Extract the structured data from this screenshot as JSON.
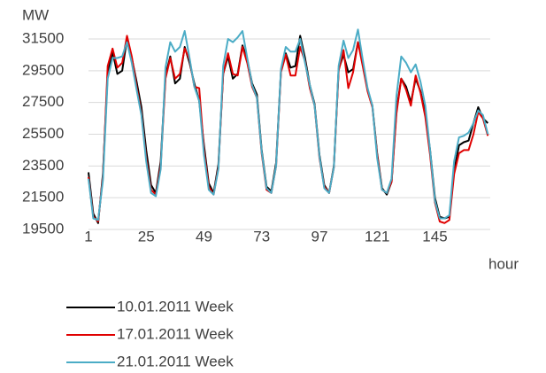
{
  "chart_data": {
    "type": "line",
    "x_label": "hour",
    "y_label": "MW",
    "x": [
      1,
      3,
      5,
      7,
      9,
      11,
      13,
      15,
      17,
      19,
      21,
      23,
      25,
      27,
      29,
      31,
      33,
      35,
      37,
      39,
      41,
      43,
      45,
      47,
      49,
      51,
      53,
      55,
      57,
      59,
      61,
      63,
      65,
      67,
      69,
      71,
      73,
      75,
      77,
      79,
      81,
      83,
      85,
      87,
      89,
      91,
      93,
      95,
      97,
      99,
      101,
      103,
      105,
      107,
      109,
      111,
      113,
      115,
      117,
      119,
      121,
      123,
      125,
      127,
      129,
      131,
      133,
      135,
      137,
      139,
      141,
      143,
      145,
      147,
      149,
      151,
      153,
      155,
      157,
      159,
      161,
      163,
      165,
      167
    ],
    "series": [
      {
        "name": "10.01.2011 Week",
        "color": "#000000",
        "values": [
          23100,
          20500,
          19900,
          23000,
          29300,
          30700,
          29300,
          29500,
          31500,
          30300,
          28800,
          27200,
          24500,
          22300,
          21800,
          23800,
          29200,
          30400,
          28700,
          29000,
          31000,
          30000,
          28700,
          27600,
          24800,
          22400,
          21800,
          23600,
          29300,
          30400,
          29000,
          29300,
          31100,
          30200,
          28700,
          28000,
          24500,
          22200,
          21900,
          23700,
          29500,
          30600,
          29700,
          29800,
          31700,
          30300,
          28600,
          27400,
          24200,
          22300,
          21800,
          23500,
          29600,
          30500,
          29400,
          29600,
          31300,
          30000,
          28300,
          27300,
          24300,
          22100,
          21700,
          22500,
          27000,
          29000,
          28500,
          27500,
          29000,
          28200,
          26800,
          24500,
          21500,
          20300,
          20200,
          20300,
          23200,
          24800,
          25000,
          25100,
          26200,
          27200,
          26500,
          26200
        ]
      },
      {
        "name": "17.01.2011 Week",
        "color": "#e00000",
        "values": [
          22800,
          20300,
          20000,
          22800,
          29800,
          30900,
          29700,
          30000,
          31700,
          30400,
          28500,
          26800,
          24000,
          22000,
          21700,
          23500,
          29000,
          30300,
          29000,
          29300,
          30900,
          30200,
          28500,
          28400,
          24500,
          22200,
          21700,
          23400,
          29300,
          30600,
          29300,
          29200,
          31000,
          30000,
          28500,
          27800,
          24300,
          22000,
          21800,
          23500,
          29400,
          30500,
          29200,
          29200,
          31000,
          30100,
          28400,
          27300,
          24000,
          22200,
          21800,
          23400,
          29500,
          30800,
          28400,
          29400,
          31300,
          29800,
          28200,
          27200,
          24200,
          22000,
          21800,
          22500,
          26800,
          29000,
          28300,
          27300,
          29200,
          28100,
          26600,
          24200,
          21200,
          20000,
          19900,
          20100,
          23000,
          24300,
          24500,
          24500,
          25500,
          26900,
          26500,
          25400
        ]
      },
      {
        "name": "21.01.2011 Week",
        "color": "#4bacc6",
        "values": [
          22700,
          20200,
          20100,
          22600,
          29000,
          30300,
          30300,
          30400,
          31300,
          30000,
          28300,
          26700,
          23800,
          21800,
          21600,
          23300,
          29700,
          31300,
          30700,
          31000,
          32000,
          30300,
          28500,
          27600,
          24200,
          22000,
          21700,
          23300,
          29800,
          31500,
          31300,
          31600,
          32000,
          30300,
          28600,
          27800,
          24400,
          22100,
          21800,
          23500,
          29600,
          31000,
          30700,
          30700,
          31500,
          30000,
          28600,
          27300,
          24100,
          22100,
          21800,
          23400,
          29800,
          31400,
          30300,
          30800,
          32100,
          30200,
          28400,
          27300,
          24000,
          22000,
          21800,
          22700,
          27900,
          30400,
          30000,
          29400,
          29900,
          28800,
          27300,
          24500,
          21300,
          20200,
          20200,
          20400,
          23800,
          25300,
          25400,
          25600,
          26200,
          27000,
          26700,
          25500
        ]
      }
    ],
    "xlim": [
      1,
      168
    ],
    "xticks": [
      1,
      25,
      49,
      73,
      97,
      121,
      145
    ],
    "ylim": [
      19500,
      32500
    ],
    "yticks": [
      19500,
      21500,
      23500,
      25500,
      27500,
      29500,
      31500
    ],
    "grid": true
  }
}
